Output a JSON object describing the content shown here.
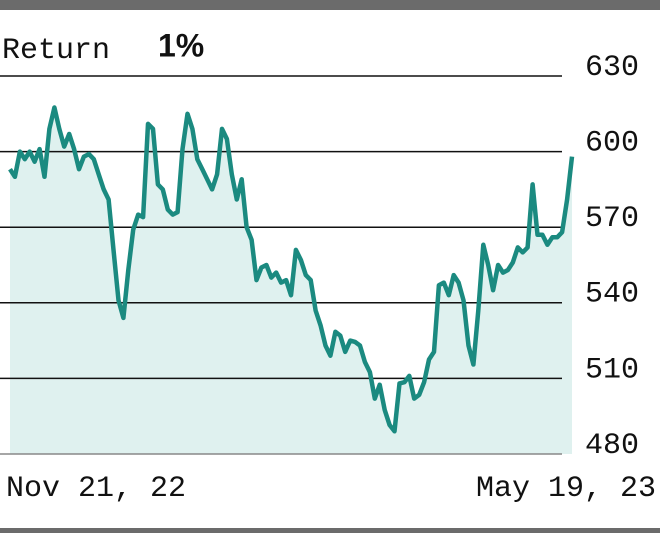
{
  "chart_data": {
    "type": "area-line",
    "title": "Return",
    "subtitle": "1%",
    "categories": [
      "Nov 21, 22",
      null,
      null,
      null,
      null,
      null,
      null,
      null,
      null,
      null,
      null,
      null,
      null,
      null,
      null,
      null,
      null,
      null,
      null,
      null,
      null,
      null,
      null,
      null,
      null,
      null,
      null,
      null,
      null,
      null,
      null,
      null,
      null,
      null,
      null,
      null,
      null,
      null,
      null,
      null,
      null,
      null,
      null,
      null,
      null,
      null,
      null,
      null,
      null,
      null,
      null,
      null,
      null,
      null,
      null,
      null,
      null,
      null,
      null,
      null,
      null,
      null,
      null,
      null,
      null,
      null,
      null,
      null,
      null,
      null,
      null,
      null,
      null,
      null,
      null,
      null,
      null,
      null,
      null,
      null,
      null,
      null,
      null,
      null,
      null,
      null,
      null,
      null,
      null,
      null,
      null,
      null,
      null,
      null,
      null,
      null,
      null,
      null,
      null,
      null,
      null,
      null,
      null,
      null,
      null,
      null,
      null,
      null,
      null,
      null,
      null,
      null,
      null,
      null,
      "May 19, 23"
    ],
    "values": [
      593,
      590,
      600,
      597,
      600,
      596,
      601,
      590,
      609,
      617.5,
      609,
      602,
      607,
      601,
      593,
      598,
      599,
      597,
      591,
      585,
      581,
      561,
      541,
      534,
      553,
      569,
      575,
      574,
      611,
      609,
      587,
      585,
      577,
      575,
      576,
      601,
      615,
      609,
      597,
      593,
      589,
      585,
      591,
      609,
      605,
      591,
      581,
      589,
      570,
      565,
      549,
      554,
      555,
      550,
      552,
      548,
      549,
      543,
      561,
      557,
      551,
      549,
      537,
      531,
      523,
      519,
      528.5,
      527,
      520.5,
      525,
      524.5,
      523,
      516.5,
      512.5,
      502,
      507.5,
      497.5,
      491.5,
      489,
      508,
      508.5,
      511,
      502,
      503.5,
      508.5,
      517.5,
      520.5,
      547,
      548,
      543,
      551,
      548,
      541,
      523,
      515.5,
      537,
      563,
      555,
      545,
      555,
      552,
      553,
      556,
      562,
      560,
      562,
      587,
      567,
      567,
      563,
      566,
      566,
      568,
      581,
      598
    ],
    "color": "#1b8a80",
    "fill_color": "#dff1ef",
    "ylim": [
      480,
      630
    ],
    "yticks": [
      480,
      510,
      540,
      570,
      600,
      630
    ],
    "grid": true
  }
}
